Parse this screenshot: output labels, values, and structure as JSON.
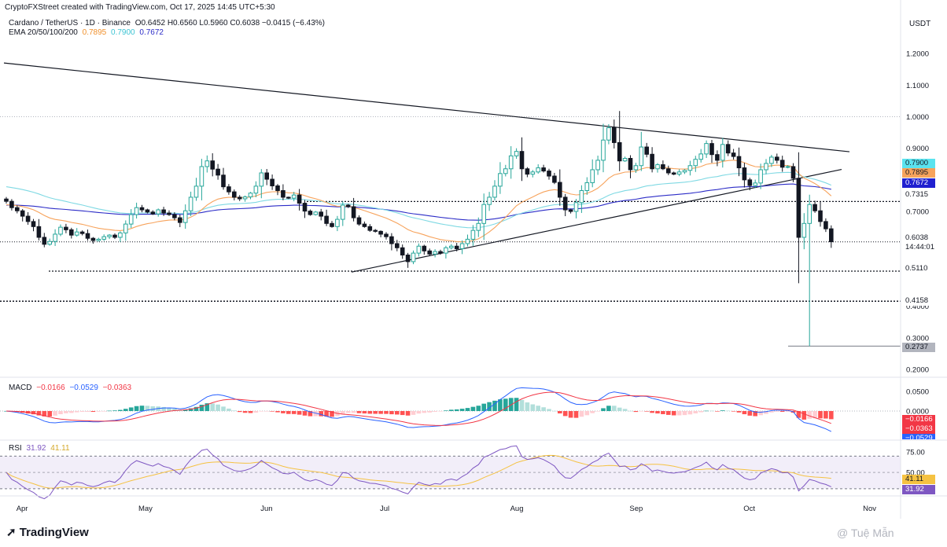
{
  "header": {
    "line1": "CryptoFXStreet created with TradingView.com, Oct 17, 2025 14:45 UTC+5:30",
    "symbol": "Cardano / TetherUS · 1D · Binance",
    "ohlc": "O0.6452  H0.6560  L0.5960  C0.6038  −0.0415 (−6.43%)",
    "ema_label": "EMA 20/50/100/200",
    "ema_values": [
      "0.7895",
      "0.7900",
      "0.7672"
    ],
    "currency": "USDT"
  },
  "colors": {
    "up": "#26a69a",
    "down": "#131722",
    "ema20": "#f7a35c",
    "ema50": "#7fd9e3",
    "ema100": "#2c2cc7",
    "macd": "#2962ff",
    "signal": "#f23645",
    "rsi": "#7e57c2",
    "rsi_ma": "#f5c242"
  },
  "chart_data": [
    {
      "type": "candlestick",
      "title": "Cardano / TetherUS · 1D · Binance",
      "ylim": [
        0.18,
        1.25
      ],
      "y_ticks": [
        "1.2000",
        "1.1000",
        "1.0000",
        "0.9000",
        "0.7000",
        "0.4000",
        "0.3000",
        "0.2000"
      ],
      "x_ticks": [
        "Apr",
        "May",
        "Jun",
        "Jul",
        "Aug",
        "Sep",
        "Oct",
        "Nov"
      ],
      "close": [
        0.732,
        0.712,
        0.702,
        0.685,
        0.668,
        0.652,
        0.618,
        0.596,
        0.605,
        0.628,
        0.65,
        0.642,
        0.625,
        0.635,
        0.63,
        0.615,
        0.608,
        0.612,
        0.62,
        0.625,
        0.618,
        0.632,
        0.66,
        0.69,
        0.712,
        0.705,
        0.698,
        0.692,
        0.705,
        0.695,
        0.69,
        0.68,
        0.665,
        0.702,
        0.745,
        0.78,
        0.842,
        0.86,
        0.834,
        0.815,
        0.778,
        0.762,
        0.745,
        0.74,
        0.746,
        0.758,
        0.78,
        0.822,
        0.802,
        0.781,
        0.766,
        0.745,
        0.742,
        0.752,
        0.726,
        0.701,
        0.69,
        0.698,
        0.685,
        0.662,
        0.652,
        0.675,
        0.72,
        0.715,
        0.68,
        0.66,
        0.652,
        0.64,
        0.637,
        0.628,
        0.62,
        0.598,
        0.585,
        0.562,
        0.541,
        0.568,
        0.59,
        0.575,
        0.565,
        0.573,
        0.568,
        0.585,
        0.59,
        0.582,
        0.598,
        0.612,
        0.64,
        0.662,
        0.722,
        0.745,
        0.78,
        0.82,
        0.835,
        0.876,
        0.89,
        0.835,
        0.818,
        0.825,
        0.838,
        0.828,
        0.812,
        0.792,
        0.745,
        0.705,
        0.7,
        0.728,
        0.766,
        0.791,
        0.832,
        0.862,
        0.926,
        0.965,
        0.918,
        0.86,
        0.868,
        0.832,
        0.845,
        0.904,
        0.881,
        0.835,
        0.848,
        0.835,
        0.822,
        0.818,
        0.825,
        0.83,
        0.845,
        0.865,
        0.882,
        0.915,
        0.88,
        0.862,
        0.912,
        0.885,
        0.874,
        0.838,
        0.8,
        0.782,
        0.79,
        0.832,
        0.852,
        0.872,
        0.862,
        0.84,
        0.842,
        0.805,
        0.618,
        0.662,
        0.722,
        0.702,
        0.668,
        0.645,
        0.604
      ],
      "price_lines": [
        "0.7315",
        "0.5110",
        "0.4158",
        "0.2737"
      ],
      "last_price": "0.6038",
      "countdown": "14:44:01",
      "ema_series": [
        {
          "name": "EMA 20",
          "last": "0.7895"
        },
        {
          "name": "EMA 50",
          "last": "0.7900"
        },
        {
          "name": "EMA 100",
          "last": "0.7672"
        }
      ]
    },
    {
      "type": "bar+line",
      "title": "MACD",
      "values": [
        "−0.0166",
        "−0.0529",
        "−0.0363"
      ],
      "y_ticks": [
        "0.0500",
        "0.0000"
      ],
      "last": [
        "−0.0166",
        "−0.0363",
        "−0.0529"
      ]
    },
    {
      "type": "line",
      "title": "RSI",
      "values": [
        "31.92",
        "41.11"
      ],
      "y_ticks": [
        "75.00",
        "50.00"
      ],
      "band": [
        30,
        70
      ],
      "last": [
        "41.11",
        "31.92"
      ]
    }
  ],
  "branding": {
    "logo": "TradingView",
    "credit": "@ Tuệ Mẫn"
  }
}
